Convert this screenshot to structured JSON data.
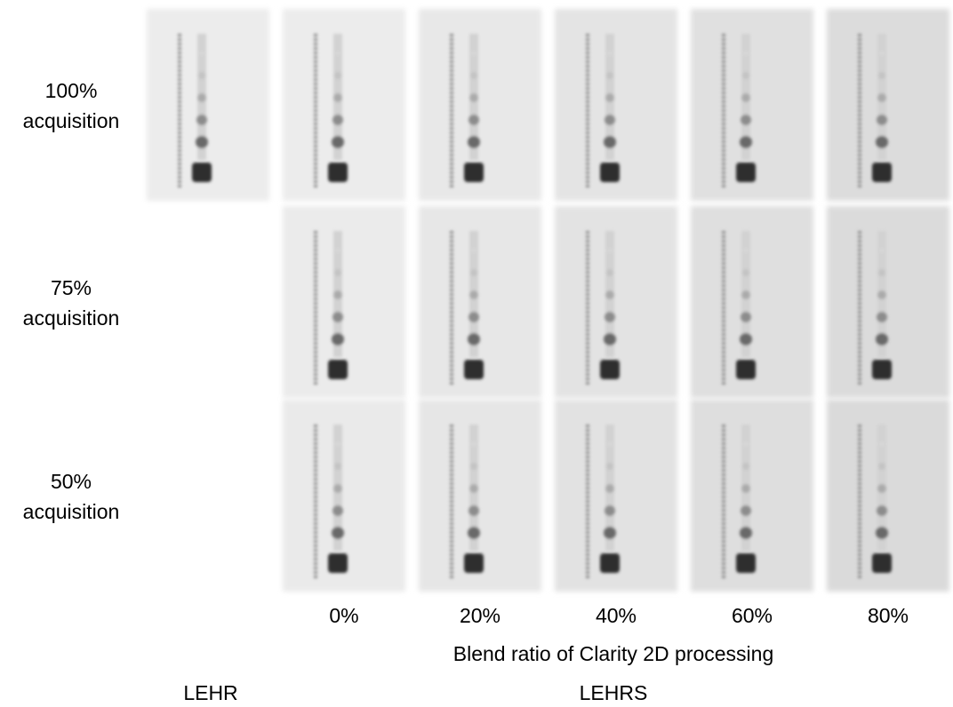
{
  "row_labels": [
    [
      "100%",
      "acquisition"
    ],
    [
      "75%",
      "acquisition"
    ],
    [
      "50%",
      "acquisition"
    ]
  ],
  "column_labels": [
    "0%",
    "20%",
    "40%",
    "60%",
    "80%"
  ],
  "axis_label": "Blend ratio of Clarity 2D processing",
  "groups": [
    "LEHR",
    "LEHRS"
  ]
}
